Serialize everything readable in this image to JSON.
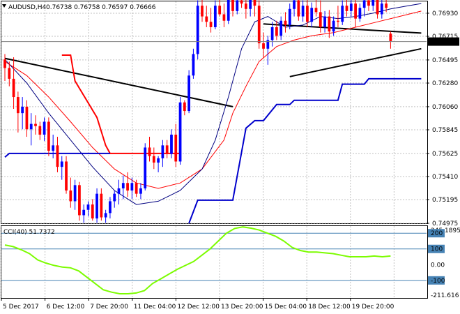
{
  "chart_data": {
    "type": "candlestick",
    "header": {
      "symbol_tf": "AUDUSD,H4",
      "ohlc": "0.76738 0.76758 0.76597 0.76666"
    },
    "current_price": "0.76666",
    "y_axis_ticks": [
      "0.76930",
      "0.76715",
      "0.76495",
      "0.76280",
      "0.76060",
      "0.75845",
      "0.75625",
      "0.75410",
      "0.75195",
      "0.74975"
    ],
    "ylim": [
      0.74975,
      0.7704
    ],
    "x_axis_labels": [
      "5 Dec 2017",
      "6 Dec 12:00",
      "7 Dec 20:00",
      "11 Dec 04:00",
      "12 Dec 12:00",
      "13 Dec 20:00",
      "15 Dec 04:00",
      "18 Dec 12:00",
      "19 Dec 20:00"
    ],
    "candles": [
      [
        0.765,
        0.7655,
        0.763,
        0.7642
      ],
      [
        0.7642,
        0.7648,
        0.7625,
        0.7632
      ],
      [
        0.7632,
        0.7652,
        0.7604,
        0.7615
      ],
      [
        0.7615,
        0.762,
        0.7582,
        0.76
      ],
      [
        0.76,
        0.7615,
        0.7585,
        0.7606
      ],
      [
        0.7606,
        0.7612,
        0.7578,
        0.7585
      ],
      [
        0.7585,
        0.76,
        0.757,
        0.759
      ],
      [
        0.759,
        0.7598,
        0.758,
        0.7588
      ],
      [
        0.7588,
        0.7592,
        0.7575,
        0.758
      ],
      [
        0.758,
        0.7596,
        0.7574,
        0.7592
      ],
      [
        0.7592,
        0.7596,
        0.756,
        0.7565
      ],
      [
        0.7565,
        0.758,
        0.7558,
        0.757
      ],
      [
        0.757,
        0.7578,
        0.7545,
        0.755
      ],
      [
        0.755,
        0.756,
        0.7538,
        0.7555
      ],
      [
        0.7555,
        0.756,
        0.7525,
        0.7528
      ],
      [
        0.7528,
        0.754,
        0.7512,
        0.7518
      ],
      [
        0.7518,
        0.7538,
        0.751,
        0.7533
      ],
      [
        0.7533,
        0.7536,
        0.75,
        0.7505
      ],
      [
        0.7505,
        0.7515,
        0.7498,
        0.751
      ],
      [
        0.751,
        0.7518,
        0.7504,
        0.7515
      ],
      [
        0.7515,
        0.752,
        0.75,
        0.7502
      ],
      [
        0.7502,
        0.753,
        0.7498,
        0.7525
      ],
      [
        0.7525,
        0.753,
        0.75,
        0.7503
      ],
      [
        0.7503,
        0.751,
        0.7498,
        0.7507
      ],
      [
        0.7507,
        0.7522,
        0.7502,
        0.7518
      ],
      [
        0.7518,
        0.7528,
        0.7512,
        0.7525
      ],
      [
        0.7525,
        0.7538,
        0.7515,
        0.753
      ],
      [
        0.753,
        0.7542,
        0.752,
        0.7535
      ],
      [
        0.7535,
        0.7545,
        0.7522,
        0.7528
      ],
      [
        0.7528,
        0.754,
        0.752,
        0.7535
      ],
      [
        0.7535,
        0.7538,
        0.7522,
        0.7525
      ],
      [
        0.7525,
        0.7535,
        0.752,
        0.753
      ],
      [
        0.753,
        0.7572,
        0.7528,
        0.7568
      ],
      [
        0.7568,
        0.7578,
        0.7555,
        0.756
      ],
      [
        0.756,
        0.7568,
        0.7548,
        0.7554
      ],
      [
        0.7554,
        0.756,
        0.7545,
        0.7558
      ],
      [
        0.7558,
        0.7575,
        0.755,
        0.757
      ],
      [
        0.757,
        0.7575,
        0.7558,
        0.7562
      ],
      [
        0.7562,
        0.7585,
        0.7558,
        0.758
      ],
      [
        0.758,
        0.759,
        0.755,
        0.7555
      ],
      [
        0.7555,
        0.7615,
        0.7552,
        0.761
      ],
      [
        0.761,
        0.7612,
        0.7598,
        0.7602
      ],
      [
        0.7602,
        0.764,
        0.76,
        0.7635
      ],
      [
        0.7635,
        0.766,
        0.7632,
        0.7655
      ],
      [
        0.7655,
        0.7705,
        0.765,
        0.77
      ],
      [
        0.77,
        0.7708,
        0.7685,
        0.769
      ],
      [
        0.769,
        0.77,
        0.768,
        0.7685
      ],
      [
        0.7685,
        0.7698,
        0.7675,
        0.768
      ],
      [
        0.768,
        0.7705,
        0.7678,
        0.77
      ],
      [
        0.77,
        0.7706,
        0.769,
        0.7692
      ],
      [
        0.7692,
        0.7702,
        0.768,
        0.7686
      ],
      [
        0.7686,
        0.7712,
        0.7683,
        0.7708
      ],
      [
        0.7708,
        0.771,
        0.769,
        0.7695
      ],
      [
        0.7695,
        0.7718,
        0.7692,
        0.7705
      ],
      [
        0.7705,
        0.7722,
        0.7698,
        0.7702
      ],
      [
        0.7702,
        0.771,
        0.7688,
        0.7697
      ],
      [
        0.7697,
        0.7735,
        0.769,
        0.7718
      ],
      [
        0.7718,
        0.7722,
        0.769,
        0.77
      ],
      [
        0.77,
        0.7705,
        0.766,
        0.7665
      ],
      [
        0.7665,
        0.7675,
        0.7652,
        0.766
      ],
      [
        0.766,
        0.7672,
        0.7645,
        0.7668
      ],
      [
        0.7668,
        0.7685,
        0.7662,
        0.768
      ],
      [
        0.768,
        0.7686,
        0.7668,
        0.7672
      ],
      [
        0.7672,
        0.769,
        0.7668,
        0.7686
      ],
      [
        0.7686,
        0.7694,
        0.7675,
        0.7682
      ],
      [
        0.7682,
        0.7702,
        0.7678,
        0.7697
      ],
      [
        0.7697,
        0.771,
        0.769,
        0.7705
      ],
      [
        0.7705,
        0.7712,
        0.7686,
        0.769
      ],
      [
        0.769,
        0.7705,
        0.7685,
        0.77
      ],
      [
        0.77,
        0.7706,
        0.768,
        0.7685
      ],
      [
        0.7685,
        0.7703,
        0.768,
        0.7698
      ],
      [
        0.7698,
        0.7712,
        0.769,
        0.7694
      ],
      [
        0.7694,
        0.7705,
        0.7675,
        0.768
      ],
      [
        0.768,
        0.7695,
        0.7675,
        0.769
      ],
      [
        0.769,
        0.7696,
        0.767,
        0.7676
      ],
      [
        0.7676,
        0.769,
        0.7672,
        0.7686
      ],
      [
        0.7686,
        0.77,
        0.768,
        0.7685
      ],
      [
        0.7685,
        0.7705,
        0.7682,
        0.77
      ],
      [
        0.77,
        0.7706,
        0.769,
        0.7695
      ],
      [
        0.7695,
        0.7707,
        0.769,
        0.7702
      ],
      [
        0.7702,
        0.7708,
        0.768,
        0.7688
      ],
      [
        0.7688,
        0.7702,
        0.7685,
        0.7698
      ],
      [
        0.7698,
        0.771,
        0.769,
        0.7705
      ],
      [
        0.7705,
        0.7712,
        0.7695,
        0.77
      ],
      [
        0.77,
        0.7712,
        0.7695,
        0.7708
      ],
      [
        0.7708,
        0.7712,
        0.7688,
        0.7692
      ],
      [
        0.7692,
        0.7706,
        0.7688,
        0.7702
      ],
      [
        0.7702,
        0.7706,
        0.7694,
        0.7698
      ],
      [
        0.7674,
        0.7676,
        0.766,
        0.7667
      ]
    ],
    "overlay_lines": [
      {
        "color": "#000000",
        "width": 2,
        "points": [
          [
            0,
            0.7651
          ],
          [
            52,
            0.7606
          ]
        ]
      },
      {
        "color": "#000000",
        "width": 2,
        "points": [
          [
            59,
            0.7683
          ],
          [
            95,
            0.76745
          ]
        ]
      },
      {
        "color": "#000000",
        "width": 2,
        "points": [
          [
            65,
            0.7634
          ],
          [
            95,
            0.766
          ]
        ]
      },
      {
        "color": "#ff0000",
        "width": 1,
        "points": [
          [
            0,
            0.7648
          ],
          [
            5,
            0.7635
          ],
          [
            10,
            0.7615
          ],
          [
            15,
            0.7592
          ],
          [
            20,
            0.7568
          ],
          [
            25,
            0.7548
          ],
          [
            30,
            0.7535
          ],
          [
            35,
            0.753
          ],
          [
            40,
            0.7535
          ],
          [
            45,
            0.7548
          ],
          [
            50,
            0.7575
          ],
          [
            52,
            0.76
          ],
          [
            55,
            0.7625
          ],
          [
            58,
            0.7648
          ],
          [
            62,
            0.7662
          ],
          [
            66,
            0.7668
          ],
          [
            70,
            0.7672
          ],
          [
            75,
            0.7675
          ],
          [
            80,
            0.768
          ],
          [
            85,
            0.7685
          ],
          [
            90,
            0.769
          ],
          [
            95,
            0.7695
          ]
        ]
      },
      {
        "color": "#000080",
        "width": 1,
        "points": [
          [
            0,
            0.765
          ],
          [
            5,
            0.7628
          ],
          [
            10,
            0.76
          ],
          [
            15,
            0.7575
          ],
          [
            20,
            0.755
          ],
          [
            25,
            0.7528
          ],
          [
            30,
            0.7515
          ],
          [
            35,
            0.7518
          ],
          [
            40,
            0.7528
          ],
          [
            45,
            0.7548
          ],
          [
            48,
            0.7575
          ],
          [
            51,
            0.7615
          ],
          [
            54,
            0.766
          ],
          [
            57,
            0.7685
          ],
          [
            60,
            0.769
          ],
          [
            64,
            0.768
          ],
          [
            68,
            0.7682
          ],
          [
            72,
            0.769
          ],
          [
            76,
            0.7688
          ],
          [
            80,
            0.769
          ],
          [
            84,
            0.7693
          ],
          [
            88,
            0.7697
          ],
          [
            92,
            0.77
          ],
          [
            95,
            0.7702
          ]
        ]
      },
      {
        "color": "#ff0000",
        "width": 2,
        "points": [
          [
            13,
            0.7654
          ],
          [
            15,
            0.7654
          ],
          [
            16,
            0.763
          ],
          [
            21,
            0.7596
          ],
          [
            23,
            0.757
          ],
          [
            24,
            0.75625
          ],
          [
            40,
            0.75625
          ]
        ]
      },
      {
        "color": "#0000cc",
        "width": 2,
        "points": [
          [
            0,
            0.7559
          ],
          [
            1,
            0.75625
          ],
          [
            24,
            0.75625
          ]
        ]
      },
      {
        "color": "#0000cc",
        "width": 2,
        "points": [
          [
            42,
            0.74975
          ],
          [
            44,
            0.7519
          ],
          [
            52,
            0.7519
          ],
          [
            55,
            0.7586
          ],
          [
            57,
            0.7593
          ],
          [
            59,
            0.7593
          ],
          [
            62,
            0.7608
          ],
          [
            65,
            0.7608
          ],
          [
            66,
            0.7612
          ],
          [
            76,
            0.7612
          ],
          [
            77,
            0.7627
          ],
          [
            82,
            0.7627
          ],
          [
            83,
            0.7632
          ],
          [
            95,
            0.7632
          ]
        ]
      }
    ],
    "indicator": {
      "label": "CCI(40) 51.7372",
      "ylim": [
        -211.616,
        245.1895
      ],
      "right_labels": [
        "245.1895",
        "200",
        "100",
        "0.00",
        "-100",
        "-211.616"
      ],
      "levels": [
        200,
        100,
        -100
      ],
      "values": [
        125,
        115,
        95,
        70,
        30,
        10,
        -5,
        -15,
        -20,
        -40,
        -80,
        -120,
        -160,
        -175,
        -185,
        -185,
        -180,
        -165,
        -120,
        -90,
        -60,
        -30,
        -5,
        20,
        60,
        100,
        150,
        200,
        230,
        240,
        232,
        220,
        200,
        180,
        150,
        110,
        90,
        80,
        80,
        75,
        70,
        60,
        50,
        50,
        50,
        55,
        50,
        55
      ]
    }
  }
}
